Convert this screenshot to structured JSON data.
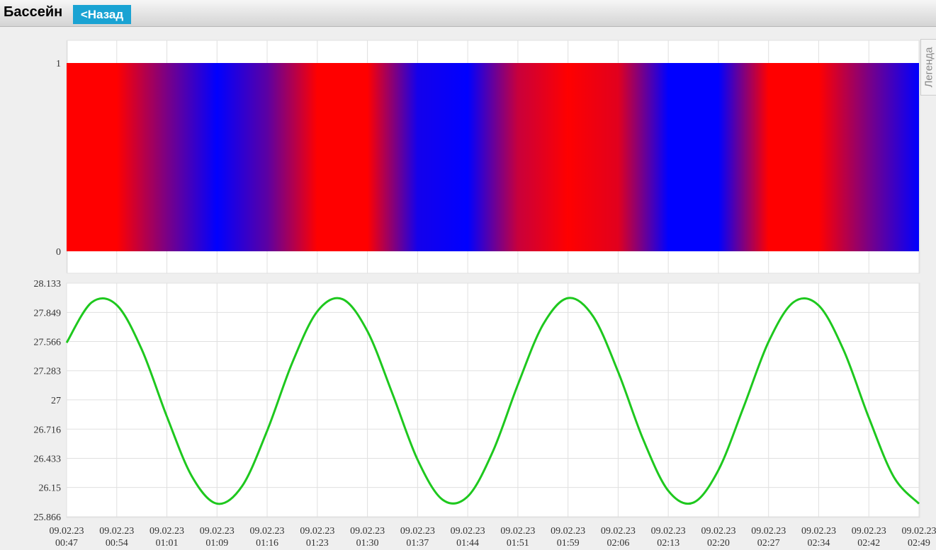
{
  "header": {
    "title": "Бассейн",
    "back_button": "<Назад"
  },
  "legend_tab": "Легенда",
  "chart_data": [
    {
      "type": "band",
      "band": [
        0,
        1
      ],
      "ylim": [
        0,
        1
      ],
      "yticks": [
        0,
        1
      ],
      "grid": true,
      "colors": [
        "#ff0000",
        "#ff0000",
        "#7a0085",
        "#0000ff",
        "#5c00a3",
        "#ff0000",
        "#ff0000",
        "#1400eb",
        "#0000ff",
        "#c8003c",
        "#ff0000",
        "#e1001e",
        "#0000ff",
        "#0000ff",
        "#ff0000",
        "#ff0000",
        "#7a0085",
        "#0000ff"
      ]
    },
    {
      "type": "line",
      "color": "#1ec81e",
      "grid": true,
      "ylim": [
        25.866,
        28.133
      ],
      "yticks": [
        25.866,
        26.15,
        26.433,
        26.716,
        27,
        27.283,
        27.566,
        27.849,
        28.133
      ],
      "categories": [
        {
          "date": "09.02.23",
          "time": "00:47"
        },
        null,
        {
          "date": "09.02.23",
          "time": "00:54"
        },
        null,
        {
          "date": "09.02.23",
          "time": "01:01"
        },
        null,
        {
          "date": "09.02.23",
          "time": "01:09"
        },
        null,
        {
          "date": "09.02.23",
          "time": "01:16"
        },
        null,
        {
          "date": "09.02.23",
          "time": "01:23"
        },
        null,
        {
          "date": "09.02.23",
          "time": "01:30"
        },
        null,
        {
          "date": "09.02.23",
          "time": "01:37"
        },
        null,
        {
          "date": "09.02.23",
          "time": "01:44"
        },
        null,
        {
          "date": "09.02.23",
          "time": "01:51"
        },
        null,
        {
          "date": "09.02.23",
          "time": "01:59"
        },
        null,
        {
          "date": "09.02.23",
          "time": "02:06"
        },
        null,
        {
          "date": "09.02.23",
          "time": "02:13"
        },
        null,
        {
          "date": "09.02.23",
          "time": "02:20"
        },
        null,
        {
          "date": "09.02.23",
          "time": "02:27"
        },
        null,
        {
          "date": "09.02.23",
          "time": "02:34"
        },
        null,
        {
          "date": "09.02.23",
          "time": "02:42"
        },
        null,
        {
          "date": "09.02.23",
          "time": "02:49"
        }
      ],
      "values": [
        27.555,
        27.946,
        27.92,
        27.488,
        26.838,
        26.257,
        25.993,
        26.163,
        26.701,
        27.36,
        27.859,
        27.978,
        27.666,
        27.058,
        26.419,
        26.031,
        26.063,
        26.498,
        27.148,
        27.729,
        27.988,
        27.811,
        27.271,
        26.615,
        26.118,
        26.003,
        26.319,
        26.928,
        27.564,
        27.949,
        27.916,
        27.479,
        26.827,
        26.25,
        25.992
      ]
    }
  ]
}
